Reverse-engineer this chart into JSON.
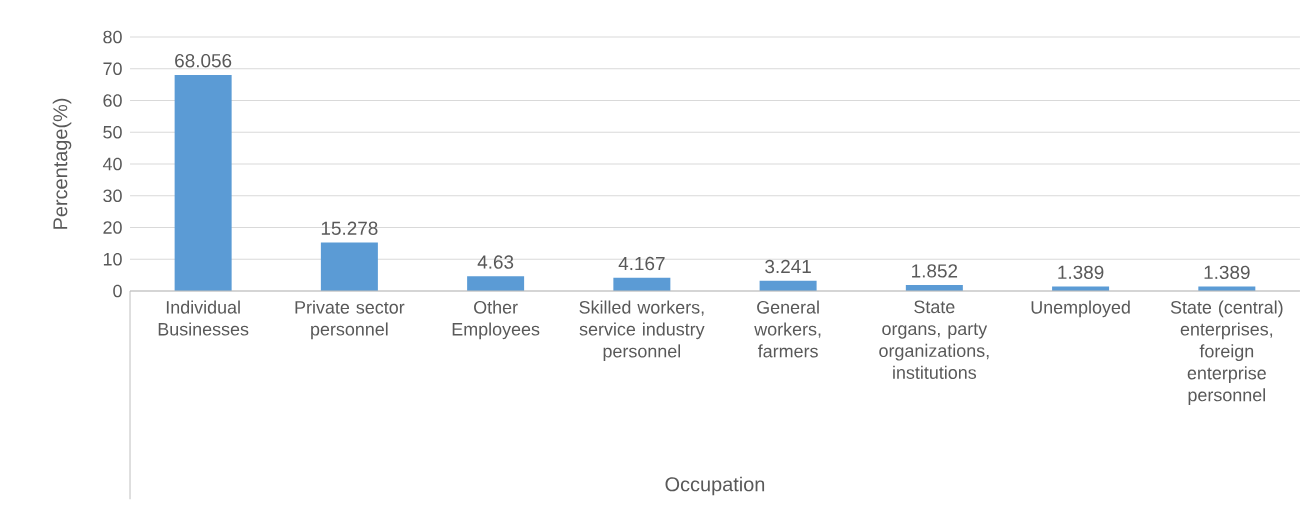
{
  "chart_data": {
    "type": "bar",
    "xlabel": "Occupation",
    "ylabel": "Percentage(%)",
    "categories": [
      "Individual Businesses",
      "Private sector personnel",
      "Other Employees",
      "Skilled workers, service industry personnel",
      "General workers, farmers",
      "State organs, party organizations, institutions",
      "Unemployed",
      "State (central) enterprises, foreign enterprise personnel"
    ],
    "values": [
      68.056,
      15.278,
      4.63,
      4.167,
      3.241,
      1.852,
      1.389,
      1.389
    ],
    "color": "#5b9bd5",
    "ylim": [
      0,
      80
    ],
    "yticks": [
      0,
      10,
      20,
      30,
      40,
      50,
      60,
      70,
      80
    ],
    "grid": "y",
    "data_labels": true
  }
}
